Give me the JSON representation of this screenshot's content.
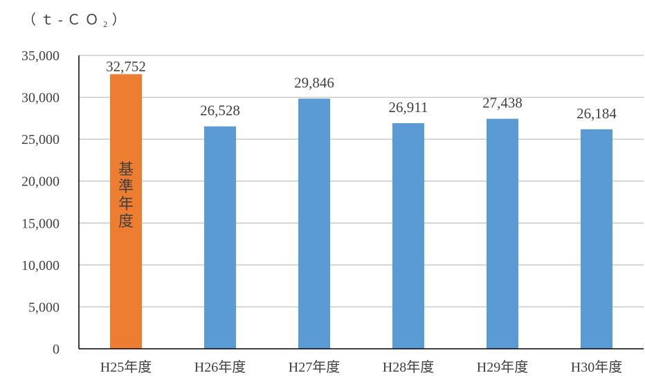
{
  "chart_data": {
    "type": "bar",
    "unit_label": "（ｔ‐ＣＯ₂）",
    "categories": [
      "H25年度",
      "H26年度",
      "H27年度",
      "H28年度",
      "H29年度",
      "H30年度"
    ],
    "values": [
      32752,
      26528,
      29846,
      26911,
      27438,
      26184
    ],
    "value_labels": [
      "32,752",
      "26,528",
      "29,846",
      "26,911",
      "27,438",
      "26,184"
    ],
    "bar_colors": [
      "#ED7D31",
      "#5B9BD5",
      "#5B9BD5",
      "#5B9BD5",
      "#5B9BD5",
      "#5B9BD5"
    ],
    "bar_annotation": {
      "index": 0,
      "text": "基準年度"
    },
    "ylim": [
      0,
      35000
    ],
    "yticks": [
      0,
      5000,
      10000,
      15000,
      20000,
      25000,
      30000,
      35000
    ],
    "ytick_labels": [
      "0",
      "5,000",
      "10,000",
      "15,000",
      "20,000",
      "25,000",
      "30,000",
      "35,000"
    ],
    "grid": true,
    "gridline_color": "#BFBFBF",
    "axis_color": "#000000",
    "text_color": "#404040"
  }
}
